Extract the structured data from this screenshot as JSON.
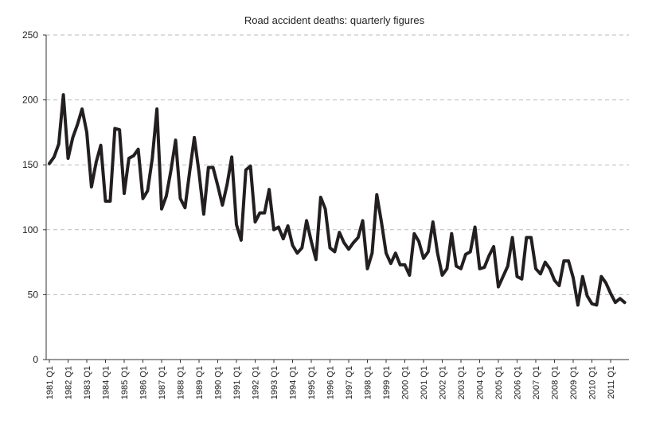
{
  "chart_data": {
    "type": "line",
    "title": "Road accident deaths: quarterly figures",
    "xlabel": "",
    "ylabel": "",
    "ylim": [
      0,
      250
    ],
    "yticks": [
      0,
      50,
      100,
      150,
      200,
      250
    ],
    "grid": "horizontal dashed",
    "legend": "none",
    "x_start": "1981 Q1",
    "x_end": "2011 Q4",
    "xtick_labels": [
      "1981 Q1",
      "1982 Q1",
      "1983 Q1",
      "1984 Q1",
      "1985 Q1",
      "1986 Q1",
      "1987 Q1",
      "1988 Q1",
      "1989 Q1",
      "1990 Q1",
      "1991 Q1",
      "1992 Q1",
      "1993 Q1",
      "1994 Q1",
      "1995 Q1",
      "1996 Q1",
      "1997 Q1",
      "1998 Q1",
      "1999 Q1",
      "2000 Q1",
      "2001 Q1",
      "2002 Q1",
      "2003 Q1",
      "2004 Q1",
      "2005 Q1",
      "2006 Q1",
      "2007 Q1",
      "2008 Q1",
      "2009 Q1",
      "2010 Q1",
      "2011 Q1"
    ],
    "series": [
      {
        "name": "Road accident deaths",
        "color": "#231f20",
        "values": [
          151,
          156,
          166,
          204,
          155,
          171,
          181,
          193,
          175,
          133,
          152,
          165,
          122,
          122,
          178,
          177,
          128,
          155,
          157,
          162,
          124,
          130,
          155,
          193,
          116,
          126,
          146,
          169,
          124,
          117,
          145,
          171,
          144,
          112,
          148,
          148,
          134,
          119,
          135,
          156,
          104,
          92,
          146,
          149,
          106,
          113,
          113,
          131,
          100,
          102,
          93,
          103,
          88,
          82,
          86,
          107,
          91,
          77,
          125,
          116,
          86,
          83,
          98,
          90,
          85,
          90,
          94,
          107,
          70,
          82,
          127,
          106,
          82,
          74,
          82,
          73,
          73,
          65,
          97,
          91,
          78,
          83,
          106,
          82,
          65,
          70,
          97,
          72,
          70,
          81,
          83,
          102,
          70,
          71,
          80,
          87,
          56,
          64,
          72,
          94,
          64,
          62,
          94,
          94,
          70,
          66,
          75,
          70,
          61,
          57,
          76,
          76,
          63,
          42,
          64,
          49,
          43,
          42,
          64,
          59,
          51,
          44,
          47,
          44
        ]
      }
    ]
  }
}
